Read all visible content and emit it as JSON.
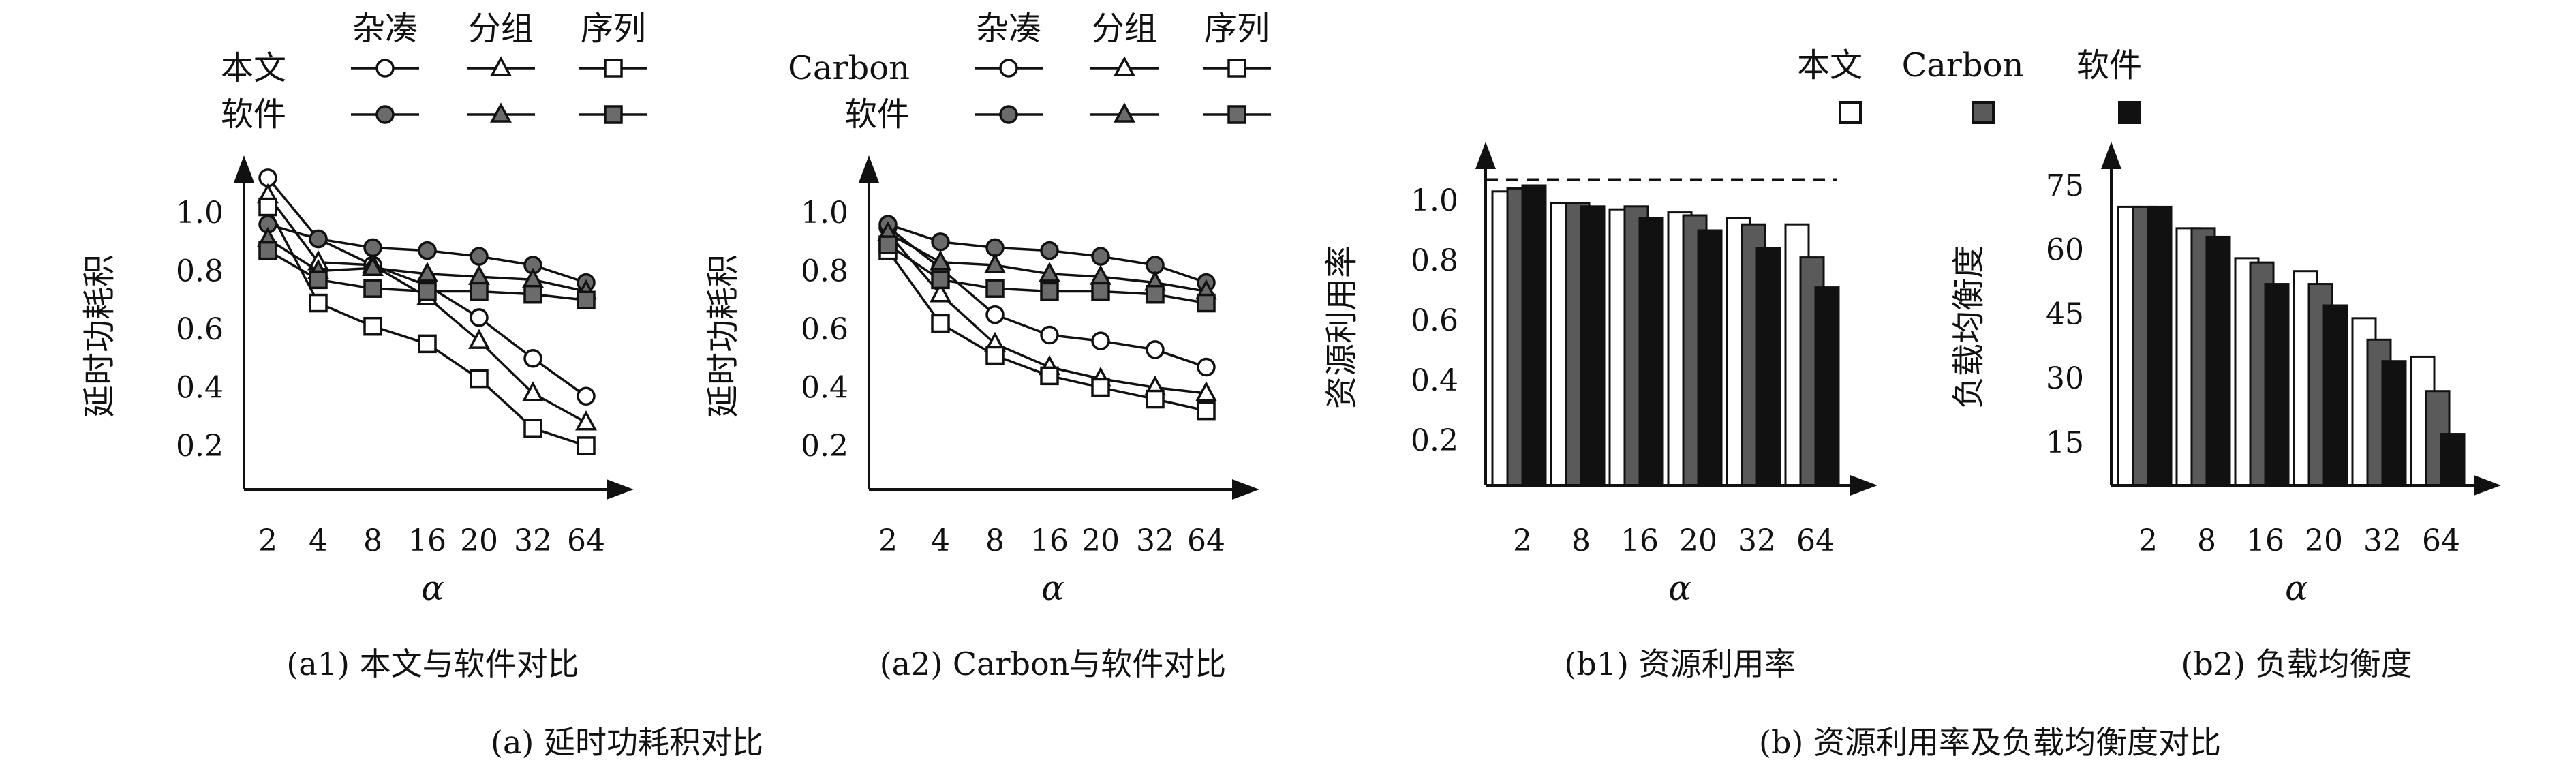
{
  "figure": {
    "caption_a": "(a) 延时功耗积对比",
    "caption_b": "(b) 资源利用率及负载均衡度对比"
  },
  "colors": {
    "line_hollow": "#ffffff",
    "line_filled": "#6b6b6b",
    "bar_ours": "#ffffff",
    "bar_carbon": "#5a5a5a",
    "bar_software": "#111111",
    "ink": "#111111"
  },
  "chart_data": [
    {
      "id": "a1",
      "type": "line",
      "caption": "(a1) 本文与软件对比",
      "xlabel": "α",
      "ylabel": "延时功耗积",
      "categories": [
        "2",
        "4",
        "8",
        "16",
        "20",
        "32",
        "64"
      ],
      "yticks": [
        "0.2",
        "0.4",
        "0.6",
        "0.8",
        "1.0"
      ],
      "ylim": [
        0.05,
        1.15
      ],
      "legend": {
        "columns": [
          "杂凑",
          "分组",
          "序列"
        ],
        "rows": [
          "本文",
          "软件"
        ]
      },
      "series": [
        {
          "row": "本文",
          "column": "杂凑",
          "marker": "circle",
          "filled": false,
          "values": [
            1.12,
            0.91,
            0.82,
            0.75,
            0.64,
            0.5,
            0.37
          ]
        },
        {
          "row": "本文",
          "column": "分组",
          "marker": "triangle",
          "filled": false,
          "values": [
            1.06,
            0.83,
            0.82,
            0.71,
            0.56,
            0.38,
            0.28
          ]
        },
        {
          "row": "本文",
          "column": "序列",
          "marker": "square",
          "filled": false,
          "values": [
            1.02,
            0.69,
            0.61,
            0.55,
            0.43,
            0.26,
            0.2
          ]
        },
        {
          "row": "软件",
          "column": "杂凑",
          "marker": "circle",
          "filled": true,
          "values": [
            0.96,
            0.91,
            0.88,
            0.87,
            0.85,
            0.82,
            0.76
          ]
        },
        {
          "row": "软件",
          "column": "分组",
          "marker": "triangle",
          "filled": true,
          "values": [
            0.91,
            0.8,
            0.81,
            0.79,
            0.78,
            0.77,
            0.73
          ]
        },
        {
          "row": "软件",
          "column": "序列",
          "marker": "square",
          "filled": true,
          "values": [
            0.87,
            0.77,
            0.74,
            0.73,
            0.73,
            0.72,
            0.7
          ]
        }
      ]
    },
    {
      "id": "a2",
      "type": "line",
      "caption": "(a2) Carbon与软件对比",
      "xlabel": "α",
      "ylabel": "延时功耗积",
      "categories": [
        "2",
        "4",
        "8",
        "16",
        "20",
        "32",
        "64"
      ],
      "yticks": [
        "0.2",
        "0.4",
        "0.6",
        "0.8",
        "1.0"
      ],
      "ylim": [
        0.05,
        1.15
      ],
      "legend": {
        "columns": [
          "杂凑",
          "分组",
          "序列"
        ],
        "rows": [
          "Carbon",
          "软件"
        ]
      },
      "series": [
        {
          "row": "Carbon",
          "column": "杂凑",
          "marker": "circle",
          "filled": false,
          "values": [
            0.95,
            0.81,
            0.65,
            0.58,
            0.56,
            0.53,
            0.47
          ]
        },
        {
          "row": "Carbon",
          "column": "分组",
          "marker": "triangle",
          "filled": false,
          "values": [
            0.93,
            0.72,
            0.55,
            0.47,
            0.43,
            0.4,
            0.38
          ]
        },
        {
          "row": "Carbon",
          "column": "序列",
          "marker": "square",
          "filled": false,
          "values": [
            0.87,
            0.62,
            0.51,
            0.44,
            0.4,
            0.36,
            0.32
          ]
        },
        {
          "row": "软件",
          "column": "杂凑",
          "marker": "circle",
          "filled": true,
          "values": [
            0.96,
            0.9,
            0.88,
            0.87,
            0.85,
            0.82,
            0.76
          ]
        },
        {
          "row": "软件",
          "column": "分组",
          "marker": "triangle",
          "filled": true,
          "values": [
            0.93,
            0.83,
            0.82,
            0.79,
            0.78,
            0.76,
            0.73
          ]
        },
        {
          "row": "软件",
          "column": "序列",
          "marker": "square",
          "filled": true,
          "values": [
            0.89,
            0.77,
            0.74,
            0.73,
            0.73,
            0.72,
            0.69
          ]
        }
      ]
    },
    {
      "id": "b1",
      "type": "bar",
      "caption": "(b1) 资源利用率",
      "xlabel": "α",
      "ylabel": "资源利用率",
      "categories": [
        "2",
        "8",
        "16",
        "20",
        "32",
        "64"
      ],
      "yticks": [
        "0.2",
        "0.4",
        "0.6",
        "0.8",
        "1.0"
      ],
      "ylim": [
        0.05,
        1.15
      ],
      "reference_line": 1.07,
      "series": [
        {
          "name": "本文",
          "values": [
            1.03,
            0.99,
            0.97,
            0.96,
            0.94,
            0.92
          ]
        },
        {
          "name": "Carbon",
          "values": [
            1.04,
            0.99,
            0.98,
            0.95,
            0.92,
            0.81
          ]
        },
        {
          "name": "软件",
          "values": [
            1.05,
            0.98,
            0.94,
            0.9,
            0.84,
            0.71
          ]
        }
      ]
    },
    {
      "id": "b2",
      "type": "bar",
      "caption": "(b2) 负载均衡度",
      "xlabel": "α",
      "ylabel": "负载均衡度",
      "categories": [
        "2",
        "8",
        "16",
        "20",
        "32",
        "64"
      ],
      "yticks": [
        "15",
        "30",
        "45",
        "60",
        "75"
      ],
      "ylim": [
        5,
        82
      ],
      "series": [
        {
          "name": "本文",
          "values": [
            70,
            65,
            58,
            55,
            44,
            35
          ]
        },
        {
          "name": "Carbon",
          "values": [
            70,
            65,
            57,
            52,
            39,
            27
          ]
        },
        {
          "name": "软件",
          "values": [
            70,
            63,
            52,
            47,
            34,
            17
          ]
        }
      ]
    }
  ],
  "bar_legend": [
    "本文",
    "Carbon",
    "软件"
  ]
}
